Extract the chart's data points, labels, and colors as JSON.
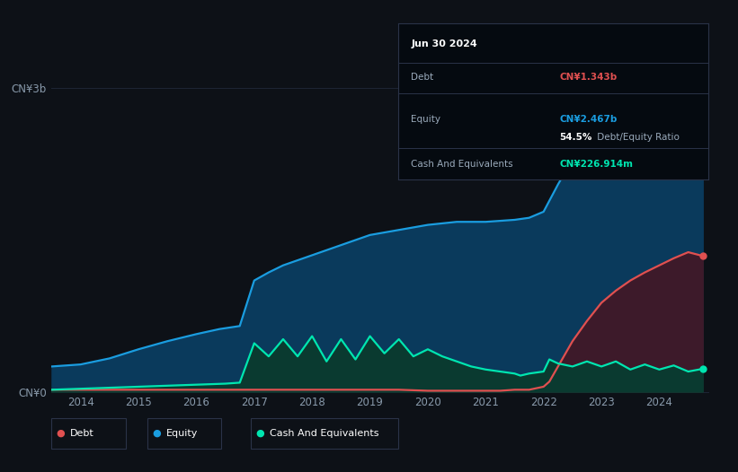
{
  "bg_color": "#0d1117",
  "plot_bg_color": "#0d1117",
  "ylabel": "CN¥3b",
  "ylabel_zero": "CN¥0",
  "ylim": [
    0,
    3.5
  ],
  "xlim": [
    2013.5,
    2024.85
  ],
  "x_ticks": [
    2014,
    2015,
    2016,
    2017,
    2018,
    2019,
    2020,
    2021,
    2022,
    2023,
    2024
  ],
  "equity_color": "#1a9de0",
  "debt_color": "#e05050",
  "cash_color": "#00e5b0",
  "equity_fill_color": "#0a3a5c",
  "debt_fill_color": "#3d1a2a",
  "cash_fill_color": "#0a3a30",
  "grid_color": "#1e2535",
  "tooltip_bg": "#050a10",
  "tooltip_title": "Jun 30 2024",
  "tooltip_debt_label": "Debt",
  "tooltip_debt_value": "CN¥1.343b",
  "tooltip_equity_label": "Equity",
  "tooltip_equity_value": "CN¥2.467b",
  "tooltip_ratio_bold": "54.5%",
  "tooltip_ratio_rest": " Debt/Equity Ratio",
  "tooltip_cash_label": "Cash And Equivalents",
  "tooltip_cash_value": "CN¥226.914m",
  "legend_labels": [
    "Debt",
    "Equity",
    "Cash And Equivalents"
  ],
  "equity_data_x": [
    2013.5,
    2014.0,
    2014.5,
    2015.0,
    2015.5,
    2016.0,
    2016.4,
    2016.75,
    2017.0,
    2017.25,
    2017.5,
    2018.0,
    2018.5,
    2019.0,
    2019.5,
    2020.0,
    2020.5,
    2021.0,
    2021.5,
    2021.75,
    2022.0,
    2022.25,
    2022.5,
    2022.75,
    2023.0,
    2023.25,
    2023.5,
    2023.75,
    2024.0,
    2024.25,
    2024.5,
    2024.75
  ],
  "equity_data_y": [
    0.25,
    0.27,
    0.33,
    0.42,
    0.5,
    0.57,
    0.62,
    0.65,
    1.1,
    1.18,
    1.25,
    1.35,
    1.45,
    1.55,
    1.6,
    1.65,
    1.68,
    1.68,
    1.7,
    1.72,
    1.78,
    2.05,
    2.3,
    2.4,
    2.5,
    2.58,
    2.65,
    2.68,
    2.75,
    2.95,
    3.08,
    2.467
  ],
  "debt_data_x": [
    2013.5,
    2014.0,
    2014.5,
    2015.0,
    2015.5,
    2016.0,
    2016.5,
    2017.0,
    2017.5,
    2018.0,
    2018.5,
    2019.0,
    2019.5,
    2020.0,
    2020.5,
    2021.0,
    2021.25,
    2021.5,
    2021.75,
    2022.0,
    2022.1,
    2022.25,
    2022.5,
    2022.75,
    2023.0,
    2023.25,
    2023.5,
    2023.75,
    2024.0,
    2024.25,
    2024.5,
    2024.75
  ],
  "debt_data_y": [
    0.02,
    0.02,
    0.02,
    0.02,
    0.02,
    0.02,
    0.02,
    0.02,
    0.02,
    0.02,
    0.02,
    0.02,
    0.02,
    0.01,
    0.01,
    0.01,
    0.01,
    0.02,
    0.02,
    0.05,
    0.1,
    0.25,
    0.5,
    0.7,
    0.88,
    1.0,
    1.1,
    1.18,
    1.25,
    1.32,
    1.38,
    1.343
  ],
  "cash_data_x": [
    2013.5,
    2014.0,
    2014.5,
    2015.0,
    2015.5,
    2016.0,
    2016.5,
    2016.75,
    2017.0,
    2017.25,
    2017.5,
    2017.75,
    2018.0,
    2018.25,
    2018.5,
    2018.75,
    2019.0,
    2019.25,
    2019.5,
    2019.75,
    2020.0,
    2020.25,
    2020.5,
    2020.75,
    2021.0,
    2021.25,
    2021.5,
    2021.6,
    2021.75,
    2022.0,
    2022.1,
    2022.25,
    2022.5,
    2022.75,
    2023.0,
    2023.25,
    2023.5,
    2023.75,
    2024.0,
    2024.25,
    2024.5,
    2024.75
  ],
  "cash_data_y": [
    0.02,
    0.03,
    0.04,
    0.05,
    0.06,
    0.07,
    0.08,
    0.09,
    0.48,
    0.35,
    0.52,
    0.35,
    0.55,
    0.3,
    0.52,
    0.32,
    0.55,
    0.38,
    0.52,
    0.35,
    0.42,
    0.35,
    0.3,
    0.25,
    0.22,
    0.2,
    0.18,
    0.16,
    0.18,
    0.2,
    0.32,
    0.28,
    0.25,
    0.3,
    0.25,
    0.3,
    0.22,
    0.27,
    0.22,
    0.26,
    0.2,
    0.2269
  ]
}
